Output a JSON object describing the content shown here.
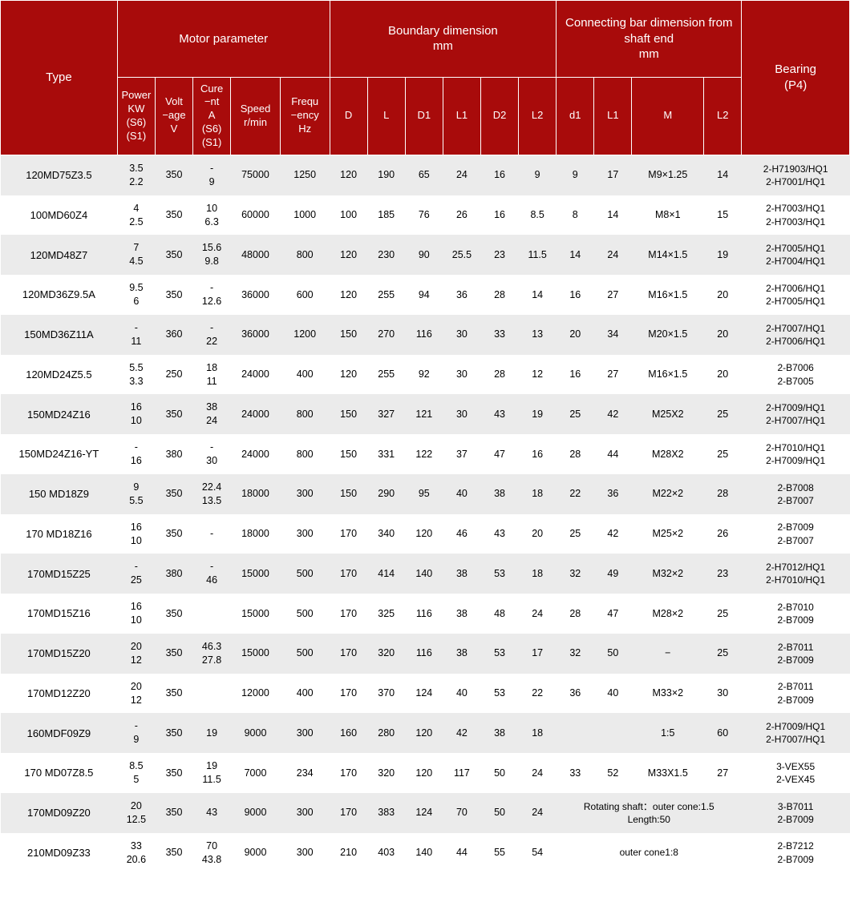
{
  "colors": {
    "header_bg": "#a80b0b",
    "header_fg": "#ffffff",
    "row_odd_bg": "#ebebeb",
    "row_even_bg": "#ffffff",
    "text": "#000000"
  },
  "header": {
    "type": "Type",
    "motor_group": "Motor parameter",
    "boundary_group": "Boundary dimension\nmm",
    "conn_group": "Connecting bar dimension from shaft end\nmm",
    "bearing": "Bearing\n(P4)",
    "power": "Power\nKW\n(S6)\n(S1)",
    "volt": "Volt\n−age\nV",
    "current": "Cure\n−nt\nA\n(S6)\n(S1)",
    "speed": "Speed\nr/min",
    "freq": "Frequ\n−ency\nHz",
    "D": "D",
    "L": "L",
    "D1": "D1",
    "L1b": "L1",
    "D2": "D2",
    "L2b": "L2",
    "d1": "d1",
    "L1c": "L1",
    "M": "M",
    "L2c": "L2"
  },
  "rows": [
    {
      "type": "120MD75Z3.5",
      "power": "3.5\n2.2",
      "volt": "350",
      "cur": "-\n9",
      "speed": "75000",
      "freq": "1250",
      "D": "120",
      "L": "190",
      "D1": "65",
      "L1": "24",
      "D2": "16",
      "L2": "9",
      "d1": "9",
      "L1c": "17",
      "M": "M9×1.25",
      "L2c": "14",
      "bearing": "2-H71903/HQ1\n2-H7001/HQ1"
    },
    {
      "type": "100MD60Z4",
      "power": "4\n2.5",
      "volt": "350",
      "cur": "10\n6.3",
      "speed": "60000",
      "freq": "1000",
      "D": "100",
      "L": "185",
      "D1": "76",
      "L1": "26",
      "D2": "16",
      "L2": "8.5",
      "d1": "8",
      "L1c": "14",
      "M": "M8×1",
      "L2c": "15",
      "bearing": "2-H7003/HQ1\n2-H7003/HQ1"
    },
    {
      "type": "120MD48Z7",
      "power": "7\n4.5",
      "volt": "350",
      "cur": "15.6\n9.8",
      "speed": "48000",
      "freq": "800",
      "D": "120",
      "L": "230",
      "D1": "90",
      "L1": "25.5",
      "D2": "23",
      "L2": "11.5",
      "d1": "14",
      "L1c": "24",
      "M": "M14×1.5",
      "L2c": "19",
      "bearing": "2-H7005/HQ1\n2-H7004/HQ1"
    },
    {
      "type": "120MD36Z9.5A",
      "power": "9.5\n6",
      "volt": "350",
      "cur": "-\n12.6",
      "speed": "36000",
      "freq": "600",
      "D": "120",
      "L": "255",
      "D1": "94",
      "L1": "36",
      "D2": "28",
      "L2": "14",
      "d1": "16",
      "L1c": "27",
      "M": "M16×1.5",
      "L2c": "20",
      "bearing": "2-H7006/HQ1\n2-H7005/HQ1"
    },
    {
      "type": "150MD36Z11A",
      "power": "-\n11",
      "volt": "360",
      "cur": "-\n22",
      "speed": "36000",
      "freq": "1200",
      "D": "150",
      "L": "270",
      "D1": "116",
      "L1": "30",
      "D2": "33",
      "L2": "13",
      "d1": "20",
      "L1c": "34",
      "M": "M20×1.5",
      "L2c": "20",
      "bearing": "2-H7007/HQ1\n2-H7006/HQ1"
    },
    {
      "type": "120MD24Z5.5",
      "power": "5.5\n3.3",
      "volt": "250",
      "cur": "18\n11",
      "speed": "24000",
      "freq": "400",
      "D": "120",
      "L": "255",
      "D1": "92",
      "L1": "30",
      "D2": "28",
      "L2": "12",
      "d1": "16",
      "L1c": "27",
      "M": "M16×1.5",
      "L2c": "20",
      "bearing": "2-B7006\n2-B7005"
    },
    {
      "type": "150MD24Z16",
      "power": "16\n10",
      "volt": "350",
      "cur": "38\n24",
      "speed": "24000",
      "freq": "800",
      "D": "150",
      "L": "327",
      "D1": "121",
      "L1": "30",
      "D2": "43",
      "L2": "19",
      "d1": "25",
      "L1c": "42",
      "M": "M25X2",
      "L2c": "25",
      "bearing": "2-H7009/HQ1\n2-H7007/HQ1"
    },
    {
      "type": "150MD24Z16-YT",
      "power": "-\n16",
      "volt": "380",
      "cur": "-\n30",
      "speed": "24000",
      "freq": "800",
      "D": "150",
      "L": "331",
      "D1": "122",
      "L1": "37",
      "D2": "47",
      "L2": "16",
      "d1": "28",
      "L1c": "44",
      "M": "M28X2",
      "L2c": "25",
      "bearing": "2-H7010/HQ1\n2-H7009/HQ1"
    },
    {
      "type": "150 MD18Z9",
      "power": "9\n5.5",
      "volt": "350",
      "cur": "22.4\n13.5",
      "speed": "18000",
      "freq": "300",
      "D": "150",
      "L": "290",
      "D1": "95",
      "L1": "40",
      "D2": "38",
      "L2": "18",
      "d1": "22",
      "L1c": "36",
      "M": "M22×2",
      "L2c": "28",
      "bearing": "2-B7008\n2-B7007"
    },
    {
      "type": "170 MD18Z16",
      "power": "16\n10",
      "volt": "350",
      "cur": "-",
      "speed": "18000",
      "freq": "300",
      "D": "170",
      "L": "340",
      "D1": "120",
      "L1": "46",
      "D2": "43",
      "L2": "20",
      "d1": "25",
      "L1c": "42",
      "M": "M25×2",
      "L2c": "26",
      "bearing": "2-B7009\n2-B7007"
    },
    {
      "type": "170MD15Z25",
      "power": "-\n25",
      "volt": "380",
      "cur": "-\n46",
      "speed": "15000",
      "freq": "500",
      "D": "170",
      "L": "414",
      "D1": "140",
      "L1": "38",
      "D2": "53",
      "L2": "18",
      "d1": "32",
      "L1c": "49",
      "M": "M32×2",
      "L2c": "23",
      "bearing": "2-H7012/HQ1\n2-H7010/HQ1"
    },
    {
      "type": "170MD15Z16",
      "power": "16\n10",
      "volt": "350",
      "cur": "",
      "speed": "15000",
      "freq": "500",
      "D": "170",
      "L": "325",
      "D1": "116",
      "L1": "38",
      "D2": "48",
      "L2": "24",
      "d1": "28",
      "L1c": "47",
      "M": "M28×2",
      "L2c": "25",
      "bearing": "2-B7010\n2-B7009"
    },
    {
      "type": "170MD15Z20",
      "power": "20\n12",
      "volt": "350",
      "cur": "46.3\n27.8",
      "speed": "15000",
      "freq": "500",
      "D": "170",
      "L": "320",
      "D1": "116",
      "L1": "38",
      "D2": "53",
      "L2": "17",
      "d1": "32",
      "L1c": "50",
      "M": "−",
      "L2c": "25",
      "bearing": "2-B7011\n2-B7009"
    },
    {
      "type": "170MD12Z20",
      "power": "20\n12",
      "volt": "350",
      "cur": "",
      "speed": "12000",
      "freq": "400",
      "D": "170",
      "L": "370",
      "D1": "124",
      "L1": "40",
      "D2": "53",
      "L2": "22",
      "d1": "36",
      "L1c": "40",
      "M": "M33×2",
      "L2c": "30",
      "bearing": "2-B7011\n2-B7009"
    },
    {
      "type": "160MDF09Z9",
      "power": "-\n9",
      "volt": "350",
      "cur": "19",
      "speed": "9000",
      "freq": "300",
      "D": "160",
      "L": "280",
      "D1": "120",
      "L1": "42",
      "D2": "38",
      "L2": "18",
      "d1": "",
      "L1c": "",
      "M": "1:5",
      "L2c": "60",
      "bearing": "2-H7009/HQ1\n2-H7007/HQ1"
    },
    {
      "type": "170 MD07Z8.5",
      "power": "8.5\n5",
      "volt": "350",
      "cur": "19\n11.5",
      "speed": "7000",
      "freq": "234",
      "D": "170",
      "L": "320",
      "D1": "120",
      "L1": "117",
      "D2": "50",
      "L2": "24",
      "d1": "33",
      "L1c": "52",
      "M": "M33X1.5",
      "L2c": "27",
      "bearing": "3-VEX55\n2-VEX45"
    },
    {
      "type": "170MD09Z20",
      "power": "20\n12.5",
      "volt": "350",
      "cur": "43",
      "speed": "9000",
      "freq": "300",
      "D": "170",
      "L": "383",
      "D1": "124",
      "L1": "70",
      "D2": "50",
      "L2": "24",
      "note": "Rotating shaft：outer cone:1.5\nLength:50",
      "bearing": "3-B7011\n2-B7009"
    },
    {
      "type": "210MD09Z33",
      "power": "33\n20.6",
      "volt": "350",
      "cur": "70\n43.8",
      "speed": "9000",
      "freq": "300",
      "D": "210",
      "L": "403",
      "D1": "140",
      "L1": "44",
      "D2": "55",
      "L2": "54",
      "note": "outer cone1:8",
      "bearing": "2-B7212\n2-B7009"
    }
  ]
}
